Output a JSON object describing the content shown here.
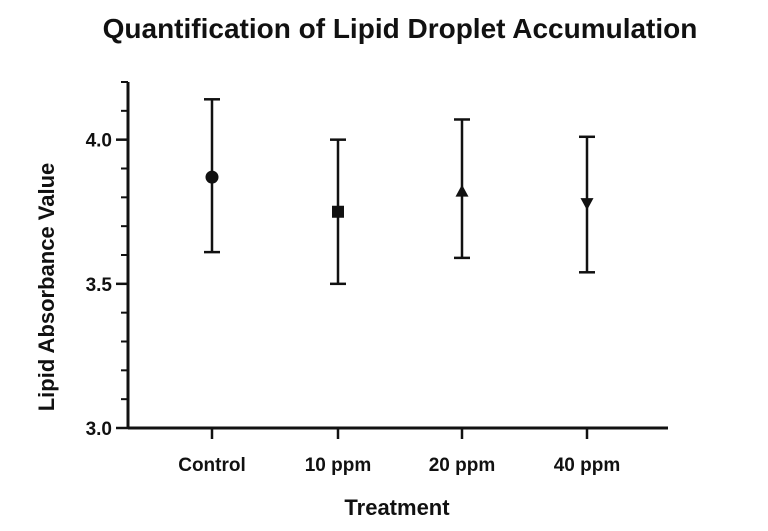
{
  "chart_data": {
    "type": "scatter",
    "title": "Quantification of Lipid Droplet Accumulation",
    "xlabel": "Treatment",
    "ylabel": "Lipid Absorbance Value",
    "categories": [
      "Control",
      "10 ppm",
      "20 ppm",
      "40 ppm"
    ],
    "series": [
      {
        "values": [
          3.87,
          3.75,
          3.82,
          3.78
        ],
        "error_lower": [
          3.61,
          3.5,
          3.59,
          3.54
        ],
        "error_upper": [
          4.14,
          4.0,
          4.07,
          4.01
        ],
        "markers": [
          "circle",
          "square",
          "triangle-up",
          "triangle-down"
        ]
      }
    ],
    "ylim": [
      3.0,
      4.2
    ],
    "yticks": [
      "3.0",
      "3.5",
      "4.0"
    ],
    "grid": false,
    "legend": "none",
    "colors": {
      "marker": "#111111",
      "axis": "#111111"
    }
  }
}
